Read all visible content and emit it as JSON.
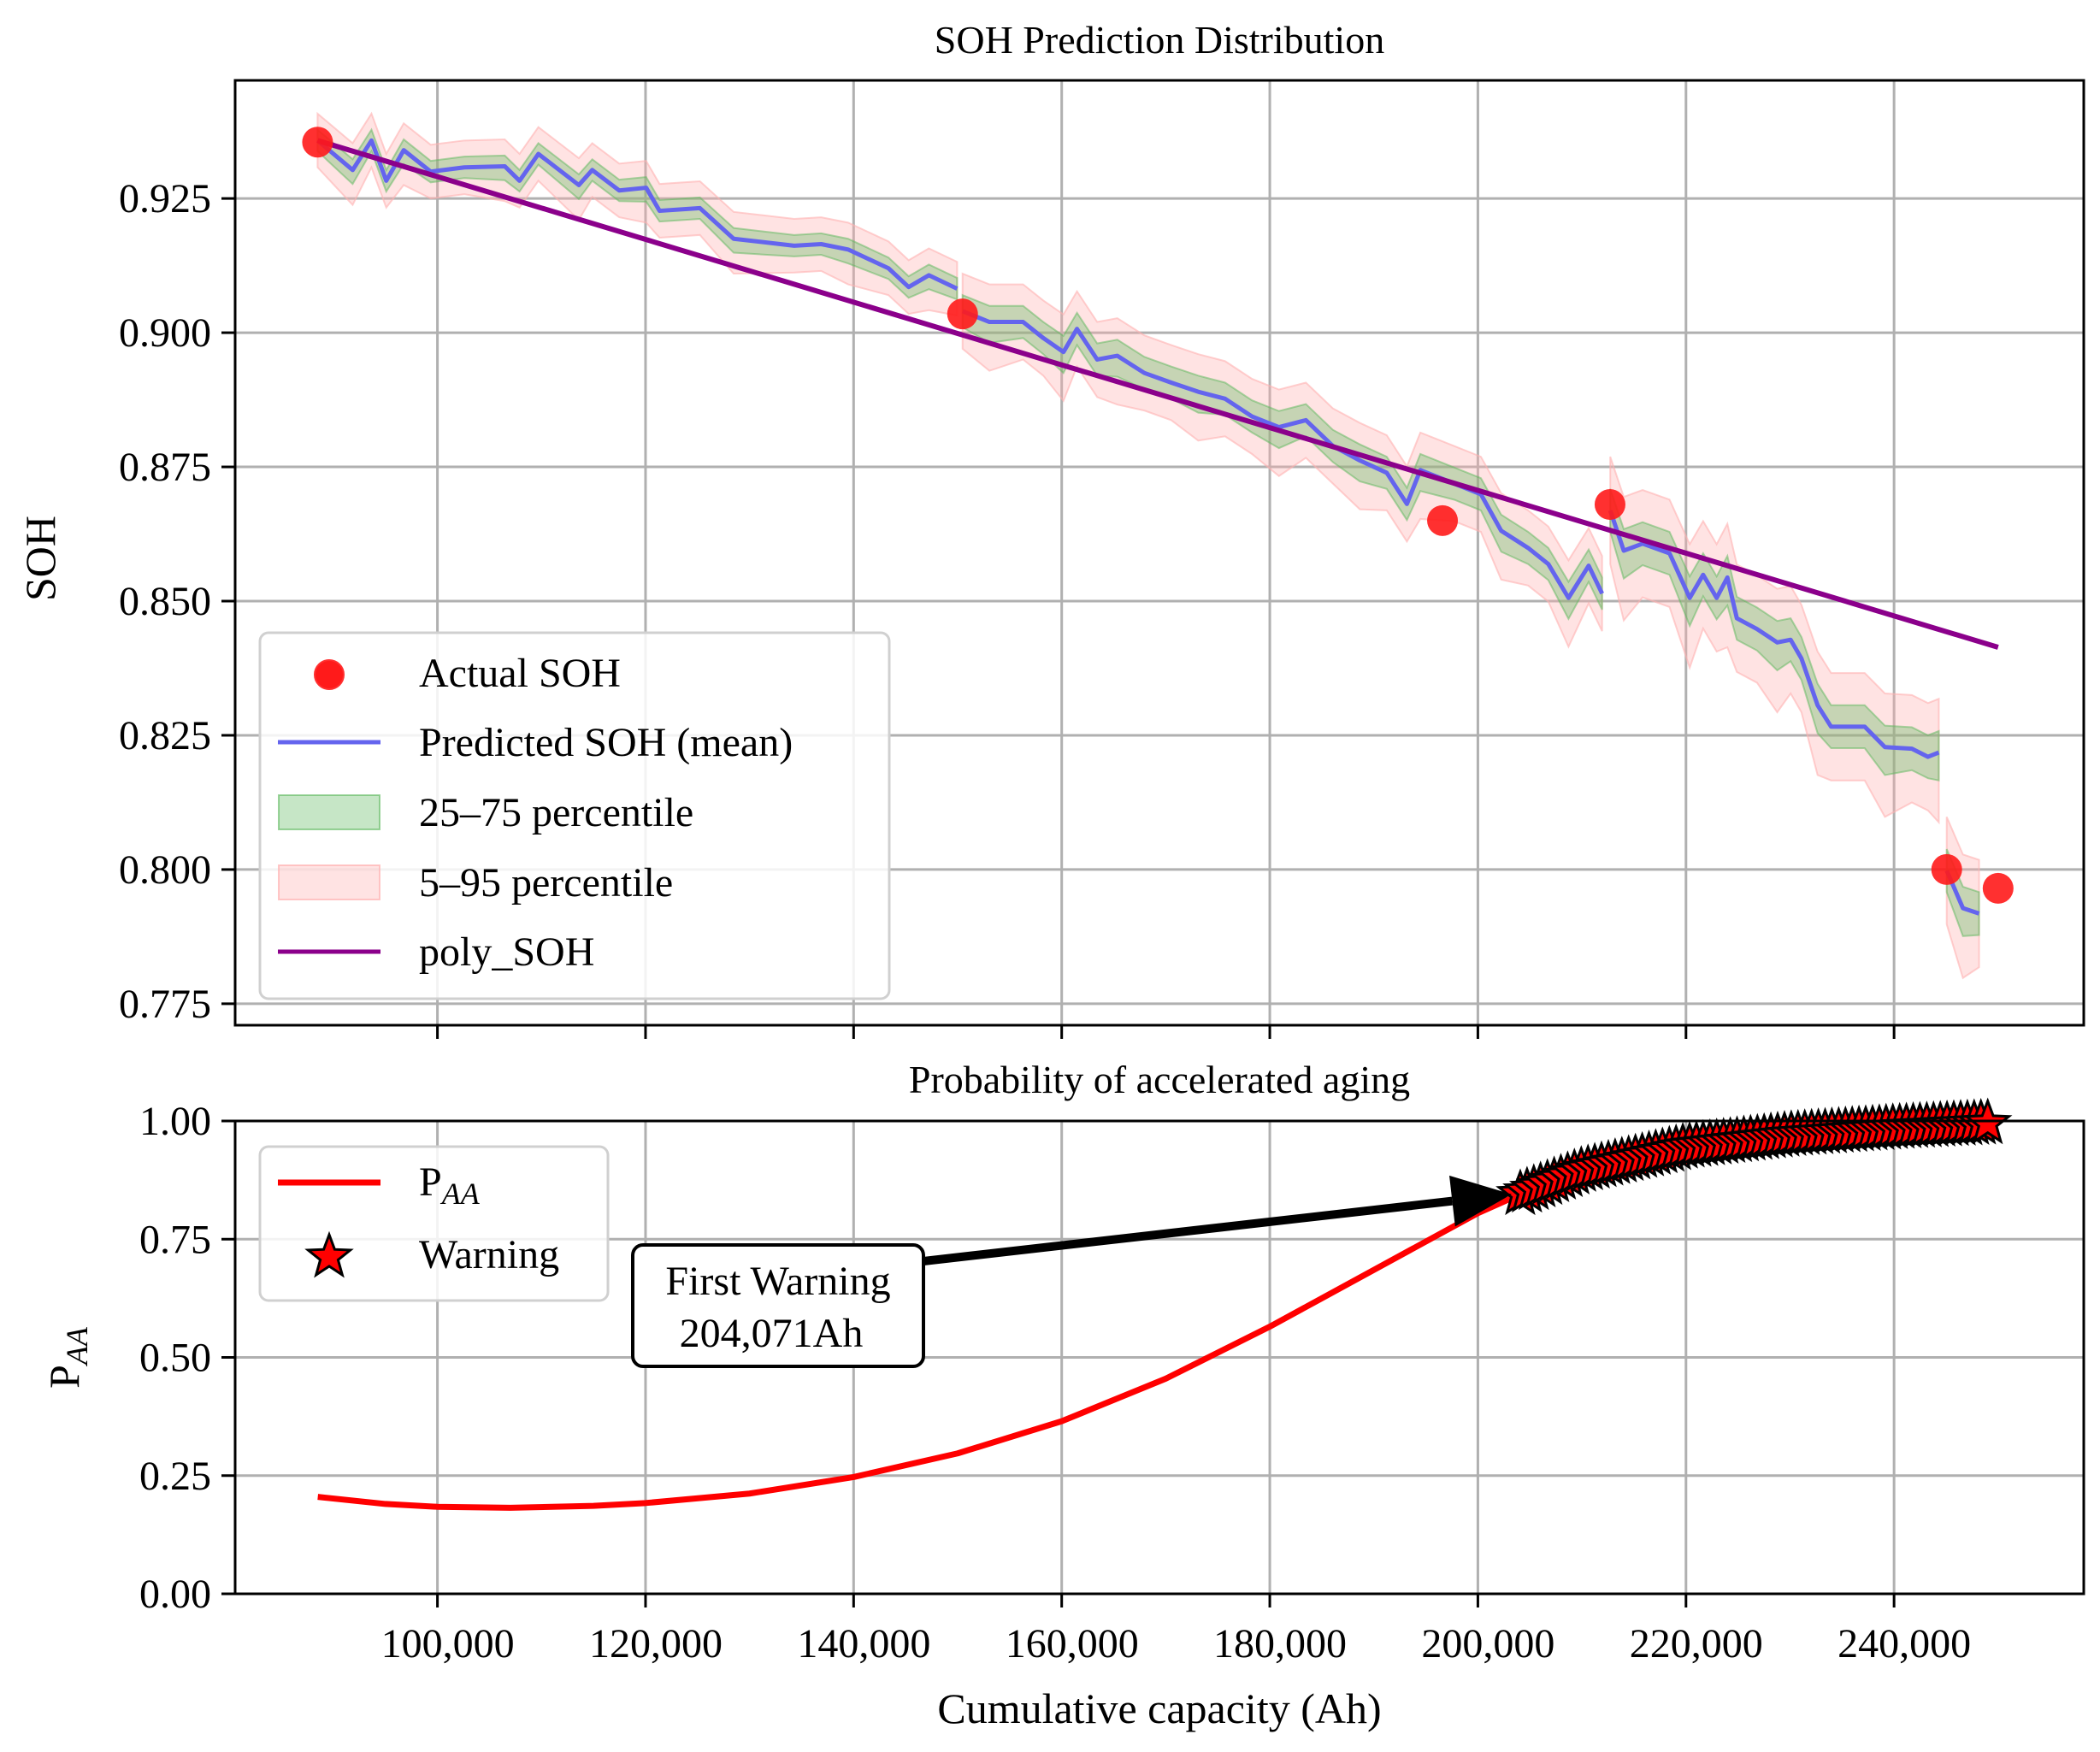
{
  "chart_data": [
    {
      "type": "line",
      "title": "SOH Prediction Distribution",
      "xlabel": "",
      "ylabel": "SOH",
      "xlim": [
        80556,
        258232
      ],
      "ylim": [
        0.771,
        0.947
      ],
      "grid": true,
      "xticks": [
        100000,
        120000,
        140000,
        160000,
        180000,
        200000,
        220000,
        240000
      ],
      "yticks": [
        0.775,
        0.8,
        0.825,
        0.85,
        0.875,
        0.9,
        0.925
      ],
      "ytick_labels": [
        "0.775",
        "0.800",
        "0.825",
        "0.850",
        "0.875",
        "0.900",
        "0.925"
      ],
      "legend": {
        "placement": "lower-left",
        "entries": [
          "Actual SOH",
          "Predicted SOH (mean)",
          "25–75 percentile",
          "5–95 percentile",
          "poly_SOH"
        ]
      },
      "colors": {
        "actual": "#ff1a1a",
        "mean": "#6464ee",
        "iqr": "#5cb85c",
        "p5_95": "#ffb0b0",
        "poly": "#8b008b"
      },
      "actual_soh": {
        "x": [
          88480,
          150470,
          196600,
          212700,
          245060,
          250000
        ],
        "y": [
          0.9355,
          0.9035,
          0.865,
          0.868,
          0.8,
          0.7965
        ]
      },
      "poly_soh": {
        "x": [
          88480,
          250000
        ],
        "y": [
          0.9358,
          0.8414
        ]
      },
      "predicted_segments": [
        {
          "iqr_halfwidth": 0.002,
          "p5_95_halfwidth": 0.005,
          "x": [
            88480,
            91850,
            93660,
            95080,
            96760,
            99350,
            102590,
            106470,
            107890,
            109700,
            113590,
            114880,
            117470,
            120060,
            121350,
            125230,
            128470,
            134290,
            136880,
            139470,
            143350,
            145290,
            147230,
            149950
          ],
          "mean": [
            0.9358,
            0.9303,
            0.9358,
            0.9283,
            0.934,
            0.93,
            0.9308,
            0.931,
            0.9283,
            0.9333,
            0.9275,
            0.9303,
            0.9265,
            0.927,
            0.9227,
            0.9232,
            0.9175,
            0.9162,
            0.9165,
            0.9155,
            0.912,
            0.9085,
            0.9107,
            0.9082
          ]
        },
        {
          "iqr_halfwidth": 0.003,
          "p5_95_halfwidth": 0.007,
          "x": [
            150470,
            153050,
            156290,
            158230,
            160170,
            161470,
            163410,
            165350,
            167940,
            170530,
            173120,
            175700,
            178290,
            180880,
            183470,
            186060,
            188650,
            191240,
            193180,
            194470,
            197710,
            200290,
            202240,
            204830,
            206770,
            208710,
            210650,
            211940
          ],
          "mean": [
            0.904,
            0.902,
            0.902,
            0.899,
            0.8964,
            0.9007,
            0.895,
            0.8957,
            0.8925,
            0.8907,
            0.889,
            0.8877,
            0.8844,
            0.8824,
            0.8837,
            0.8789,
            0.8762,
            0.8739,
            0.8681,
            0.8744,
            0.8719,
            0.8699,
            0.8631,
            0.8599,
            0.8569,
            0.8506,
            0.8566,
            0.8514
          ]
        },
        {
          "iqr_halfwidth": 0.004,
          "p5_95_halfwidth": 0.01,
          "x": [
            212720,
            214020,
            215830,
            218420,
            220360,
            221650,
            222950,
            223980,
            224890,
            226830,
            228770,
            230060,
            231100,
            232650,
            233950,
            237180,
            239120,
            241710,
            243260,
            244300
          ],
          "mean": [
            0.8669,
            0.8594,
            0.8607,
            0.8589,
            0.8506,
            0.8549,
            0.8506,
            0.8544,
            0.8468,
            0.8448,
            0.8423,
            0.8428,
            0.8393,
            0.8306,
            0.8266,
            0.8266,
            0.8228,
            0.8225,
            0.821,
            0.8218
          ]
        },
        {
          "iqr_halfwidth": 0.004,
          "p5_95_halfwidth": 0.01,
          "x": [
            245060,
            246620,
            248170
          ],
          "mean": [
            0.7998,
            0.7928,
            0.7918
          ]
        }
      ]
    },
    {
      "type": "line",
      "title": "Probability of accelerated aging",
      "xlabel": "Cumulative capacity (Ah)",
      "ylabel_main": "P",
      "ylabel_sub": "AA",
      "xlim": [
        80556,
        258232
      ],
      "ylim": [
        0.0,
        1.0
      ],
      "grid": true,
      "xticks": [
        100000,
        120000,
        140000,
        160000,
        180000,
        200000,
        220000,
        240000
      ],
      "xtick_labels": [
        "100,000",
        "120,000",
        "140,000",
        "160,000",
        "180,000",
        "200,000",
        "220,000",
        "240,000"
      ],
      "yticks": [
        0.0,
        0.25,
        0.5,
        0.75,
        1.0
      ],
      "ytick_labels": [
        "0.00",
        "0.25",
        "0.50",
        "0.75",
        "1.00"
      ],
      "legend": {
        "placement": "upper-left",
        "entry_paa_main": "P",
        "entry_paa_sub": "AA",
        "entry_warning": "Warning"
      },
      "colors": {
        "paa": "#ff0000",
        "warning_fill": "#ff0000",
        "warning_edge": "#000000"
      },
      "p_aa": {
        "x": [
          88500,
          95000,
          100000,
          107000,
          115000,
          120000,
          130000,
          140000,
          150000,
          160000,
          170000,
          180000,
          190000,
          200000,
          204071,
          210000,
          220000,
          230000,
          240000,
          249000
        ],
        "y": [
          0.205,
          0.19,
          0.184,
          0.182,
          0.186,
          0.192,
          0.212,
          0.247,
          0.297,
          0.365,
          0.455,
          0.565,
          0.685,
          0.805,
          0.845,
          0.895,
          0.945,
          0.97,
          0.985,
          0.995
        ]
      },
      "warning": {
        "x_start": 204071,
        "x_end": 249000,
        "count": 70
      },
      "annotation": {
        "line1": "First Warning",
        "line2": "204,071Ah",
        "target_x": 204071
      }
    }
  ]
}
